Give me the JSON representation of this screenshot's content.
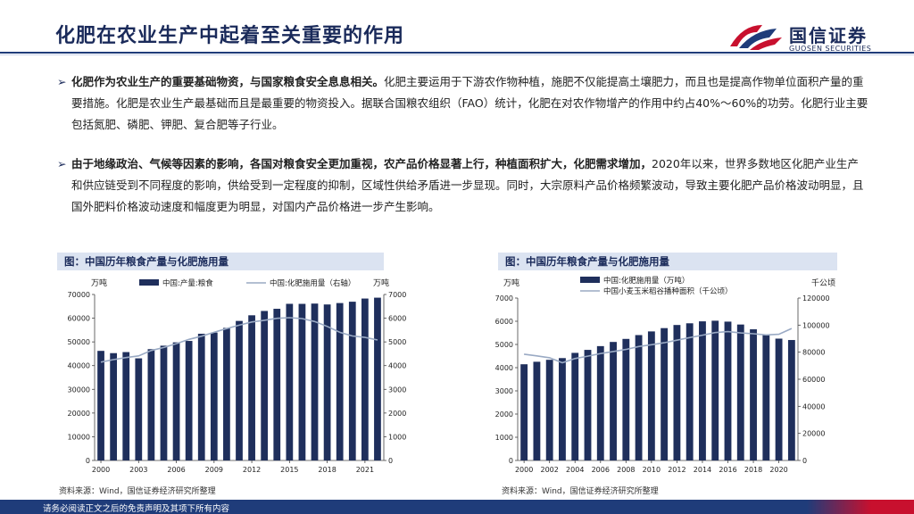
{
  "page": {
    "title": "化肥在农业生产中起着至关重要的作用",
    "brand": {
      "cn": "国信证券",
      "en": "GUOSEN SECURITIES"
    },
    "bullet": "➢",
    "para1": {
      "lead": "化肥作为农业生产的重要基础物资，与国家粮食安全息息相关。",
      "rest": "化肥主要运用于下游农作物种植，施肥不仅能提高土壤肥力，而且也是提高作物单位面积产量的重要措施。化肥是农业生产最基础而且是最重要的物资投入。据联合国粮农组织（FAO）统计，化肥在对农作物增产的作用中约占40%～60%的功劳。化肥行业主要包括氮肥、磷肥、钾肥、复合肥等子行业。"
    },
    "para2": {
      "lead": "由于地缘政治、气候等因素的影响，各国对粮食安全更加重视，农产品价格显著上行，种植面积扩大，化肥需求增加，",
      "rest": "2020年以来，世界多数地区化肥产业生产和供应链受到不同程度的影响，供给受到一定程度的抑制，区域性供给矛盾进一步显现。同时，大宗原料产品价格频繁波动，导致主要化肥产品价格波动明显，且国外肥料价格波动速度和幅度更为明显，对国内产品价格进一步产生影响。"
    },
    "footer": "请务必阅读正文之后的免责声明及其项下所有内容"
  },
  "chart1": {
    "panel_title": "图：中国历年粮食产量与化肥施用量",
    "source": "资料来源：Wind，国信证券经济研究所整理"
  },
  "chart2": {
    "panel_title": "图：中国历年粮食产量与化肥施用量",
    "source": "资料来源：Wind，国信证券经济研究所整理"
  },
  "chart_data": [
    {
      "type": "bar",
      "left_unit": "万吨",
      "right_unit": "万吨",
      "x": [
        2000,
        2001,
        2002,
        2003,
        2004,
        2005,
        2006,
        2007,
        2008,
        2009,
        2010,
        2011,
        2012,
        2013,
        2014,
        2015,
        2016,
        2017,
        2018,
        2019,
        2020,
        2021,
        2022
      ],
      "xticks": [
        2000,
        2003,
        2006,
        2009,
        2012,
        2015,
        2018,
        2021
      ],
      "series": [
        {
          "name": "中国:产量:粮食",
          "axis": "left",
          "kind": "bar",
          "color": "#1f2f5c",
          "values": [
            46218,
            45264,
            45706,
            43070,
            46947,
            48402,
            49804,
            50414,
            53434,
            53941,
            55911,
            58849,
            61223,
            63048,
            63965,
            66060,
            66044,
            66161,
            65789,
            66384,
            66949,
            68285,
            68653
          ]
        },
        {
          "name": "中国:化肥施用量（右轴）",
          "axis": "right",
          "kind": "line",
          "color": "#9aaac4",
          "values": [
            4146,
            4254,
            4339,
            4412,
            4637,
            4766,
            4928,
            5108,
            5239,
            5404,
            5562,
            5704,
            5839,
            5912,
            5996,
            6023,
            5984,
            5859,
            5653,
            5404,
            5251,
            5191,
            5079
          ]
        }
      ],
      "ylim_left": [
        0,
        70000
      ],
      "yticks_left": [
        0,
        10000,
        20000,
        30000,
        40000,
        50000,
        60000,
        70000
      ],
      "ylim_right": [
        0,
        7000
      ],
      "yticks_right": [
        0,
        1000,
        2000,
        3000,
        4000,
        5000,
        6000,
        7000
      ],
      "legend": "top"
    },
    {
      "type": "bar",
      "left_unit": "万吨",
      "right_unit": "千公顷",
      "x": [
        2000,
        2001,
        2002,
        2003,
        2004,
        2005,
        2006,
        2007,
        2008,
        2009,
        2010,
        2011,
        2012,
        2013,
        2014,
        2015,
        2016,
        2017,
        2018,
        2019,
        2020,
        2021
      ],
      "xticks": [
        2000,
        2002,
        2004,
        2006,
        2008,
        2010,
        2012,
        2014,
        2016,
        2018,
        2020
      ],
      "series": [
        {
          "name": "中国:化肥施用量（万吨）",
          "axis": "left",
          "kind": "bar",
          "color": "#1f2f5c",
          "values": [
            4146,
            4254,
            4339,
            4412,
            4637,
            4766,
            4928,
            5108,
            5239,
            5404,
            5562,
            5704,
            5839,
            5912,
            5996,
            6023,
            5984,
            5859,
            5653,
            5404,
            5251,
            5191
          ]
        },
        {
          "name": "中国小麦玉米稻谷播种面积（千公顷）",
          "axis": "right",
          "kind": "line",
          "color": "#9aaac4",
          "values": [
            78500,
            77300,
            75900,
            72200,
            75300,
            77100,
            79000,
            80500,
            82000,
            84200,
            85500,
            87000,
            88900,
            90800,
            92600,
            94500,
            95200,
            94200,
            93600,
            92800,
            93200,
            97500
          ]
        }
      ],
      "ylim_left": [
        0,
        7000
      ],
      "yticks_left": [
        0,
        1000,
        2000,
        3000,
        4000,
        5000,
        6000,
        7000
      ],
      "ylim_right": [
        0,
        120000
      ],
      "yticks_right": [
        0,
        20000,
        40000,
        60000,
        80000,
        100000,
        120000
      ],
      "legend": "top"
    }
  ]
}
